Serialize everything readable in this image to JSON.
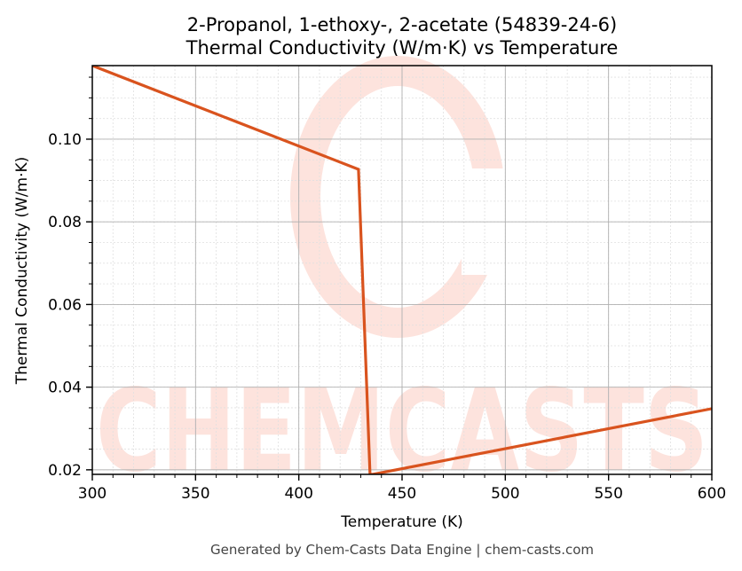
{
  "chart_data": {
    "type": "line",
    "title": "2-Propanol, 1-ethoxy-, 2-acetate (54839-24-6)",
    "subtitle": "Thermal Conductivity (W/m·K) vs Temperature",
    "xlabel": "Temperature (K)",
    "ylabel": "Thermal Conductivity (W/m·K)",
    "xlim": [
      300,
      600
    ],
    "ylim": [
      0.0189,
      0.1178
    ],
    "xticks": [
      300,
      350,
      400,
      450,
      500,
      550,
      600
    ],
    "xtick_labels": [
      "300",
      "350",
      "400",
      "450",
      "500",
      "550",
      "600"
    ],
    "yticks": [
      0.02,
      0.04,
      0.06,
      0.08,
      0.1
    ],
    "ytick_labels": [
      "0.02",
      "0.04",
      "0.06",
      "0.08",
      "0.10"
    ],
    "grid": true,
    "legend": null,
    "series": [
      {
        "name": "Thermal Conductivity",
        "color": "#d9531e",
        "x": [
          300,
          428.9,
          434.5,
          435.8,
          600
        ],
        "y": [
          0.1178,
          0.0927,
          0.0189,
          0.0189,
          0.0348
        ]
      }
    ],
    "watermark": "CHEMCASTS"
  },
  "footer": "Generated by Chem-Casts Data Engine | chem-casts.com",
  "colors": {
    "line": "#d9531e",
    "watermark": "#fde3dd",
    "grid_major": "#b0b0b0",
    "grid_minor": "#e0e0e0",
    "axes": "#000000"
  }
}
